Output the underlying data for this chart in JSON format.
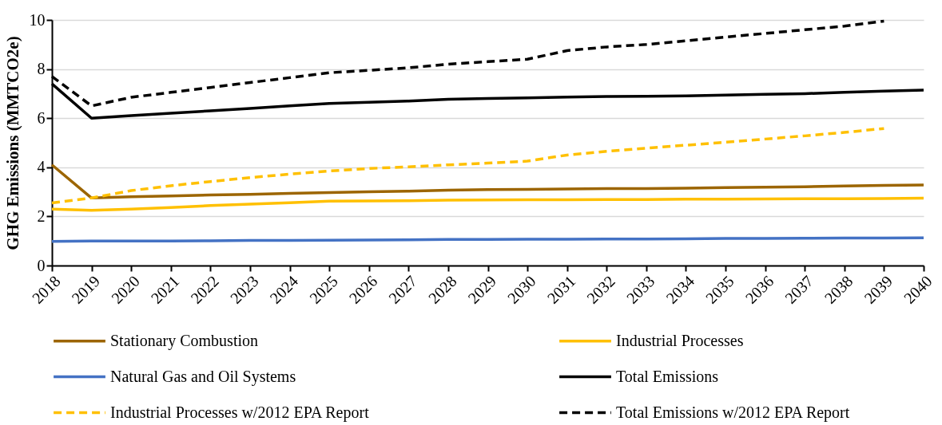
{
  "chart_data": {
    "type": "line",
    "ylabel": "GHG Emissions (MMTCO2e)",
    "categories": [
      "2018",
      "2019",
      "2020",
      "2021",
      "2022",
      "2023",
      "2024",
      "2025",
      "2026",
      "2027",
      "2028",
      "2029",
      "2030",
      "2031",
      "2032",
      "2033",
      "2034",
      "2035",
      "2036",
      "2037",
      "2038",
      "2039",
      "2040"
    ],
    "ylim": [
      0,
      10
    ],
    "yticks": [
      0,
      2,
      4,
      6,
      8,
      10
    ],
    "grid": "y",
    "legend": "bottom",
    "marker": "none",
    "series": [
      {
        "name": "Stationary Combustion",
        "color": "#9c6500",
        "line_style": "solid",
        "values": [
          4.1,
          2.75,
          2.8,
          2.83,
          2.87,
          2.9,
          2.94,
          2.97,
          3.0,
          3.03,
          3.07,
          3.09,
          3.1,
          3.12,
          3.13,
          3.13,
          3.15,
          3.17,
          3.19,
          3.21,
          3.24,
          3.26,
          3.28
        ]
      },
      {
        "name": "Industrial Processes",
        "color": "#ffc000",
        "line_style": "solid",
        "values": [
          2.3,
          2.25,
          2.3,
          2.36,
          2.44,
          2.5,
          2.56,
          2.62,
          2.63,
          2.64,
          2.66,
          2.67,
          2.68,
          2.68,
          2.69,
          2.69,
          2.7,
          2.7,
          2.71,
          2.72,
          2.72,
          2.73,
          2.74
        ]
      },
      {
        "name": "Natural Gas and Oil Systems",
        "color": "#4472c4",
        "line_style": "solid",
        "values": [
          0.98,
          1.0,
          1.0,
          1.0,
          1.01,
          1.02,
          1.02,
          1.03,
          1.04,
          1.05,
          1.06,
          1.06,
          1.07,
          1.07,
          1.08,
          1.08,
          1.09,
          1.1,
          1.1,
          1.11,
          1.12,
          1.12,
          1.13
        ]
      },
      {
        "name": "Total Emissions",
        "color": "#000000",
        "line_style": "solid",
        "values": [
          7.4,
          6.0,
          6.1,
          6.2,
          6.3,
          6.4,
          6.5,
          6.6,
          6.65,
          6.7,
          6.77,
          6.8,
          6.83,
          6.86,
          6.88,
          6.89,
          6.91,
          6.94,
          6.97,
          7.0,
          7.05,
          7.1,
          7.14
        ]
      },
      {
        "name": "Industrial Processes w/2012 EPA Report",
        "color": "#ffc000",
        "line_style": "dashed",
        "values": [
          2.55,
          2.75,
          3.05,
          3.25,
          3.42,
          3.58,
          3.72,
          3.85,
          3.95,
          4.02,
          4.1,
          4.17,
          4.25,
          4.5,
          4.65,
          4.78,
          4.9,
          5.02,
          5.15,
          5.28,
          5.42,
          5.58,
          null
        ]
      },
      {
        "name": "Total Emissions w/2012 EPA Report",
        "color": "#000000",
        "line_style": "dashed",
        "values": [
          7.7,
          6.5,
          6.85,
          7.05,
          7.25,
          7.45,
          7.65,
          7.85,
          7.95,
          8.05,
          8.2,
          8.3,
          8.4,
          8.75,
          8.9,
          9.0,
          9.15,
          9.3,
          9.45,
          9.6,
          9.75,
          9.95,
          null
        ]
      }
    ]
  }
}
